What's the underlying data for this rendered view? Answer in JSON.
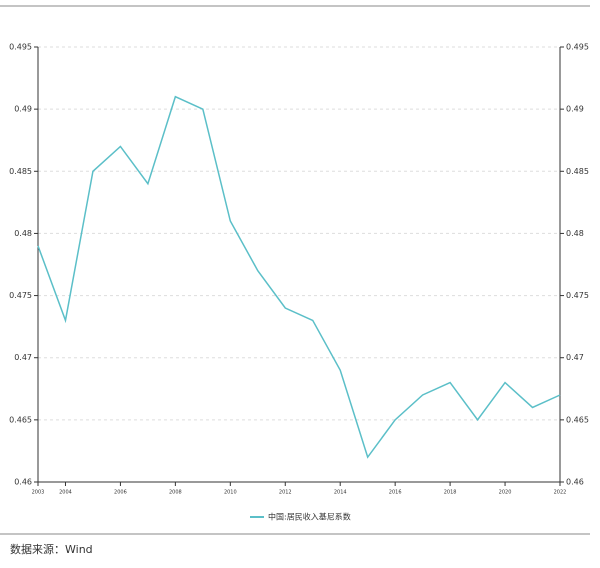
{
  "chart_data": {
    "type": "line",
    "x": [
      2003,
      2004,
      2005,
      2006,
      2007,
      2008,
      2009,
      2010,
      2011,
      2012,
      2013,
      2014,
      2015,
      2016,
      2017,
      2018,
      2019,
      2020,
      2021,
      2022
    ],
    "series": [
      {
        "name": "中国:居民收入基尼系数",
        "color": "#5bbfc8",
        "values": [
          0.479,
          0.473,
          0.485,
          0.487,
          0.484,
          0.491,
          0.49,
          0.481,
          0.477,
          0.474,
          0.473,
          0.469,
          0.462,
          0.465,
          0.467,
          0.468,
          0.465,
          0.468,
          0.466,
          0.467
        ]
      }
    ],
    "xlim": [
      2003,
      2022
    ],
    "xticks": [
      2003,
      2004,
      2006,
      2008,
      2010,
      2012,
      2014,
      2016,
      2018,
      2020,
      2022
    ],
    "ylim": [
      0.46,
      0.495
    ],
    "yticks": [
      0.46,
      0.465,
      0.47,
      0.475,
      0.48,
      0.485,
      0.49,
      0.495
    ],
    "y2lim": [
      0.46,
      0.495
    ],
    "y2ticks": [
      0.46,
      0.465,
      0.47,
      0.475,
      0.48,
      0.485,
      0.49,
      0.495
    ],
    "grid": true,
    "legend": "bottom",
    "source": "数据来源：Wind"
  }
}
